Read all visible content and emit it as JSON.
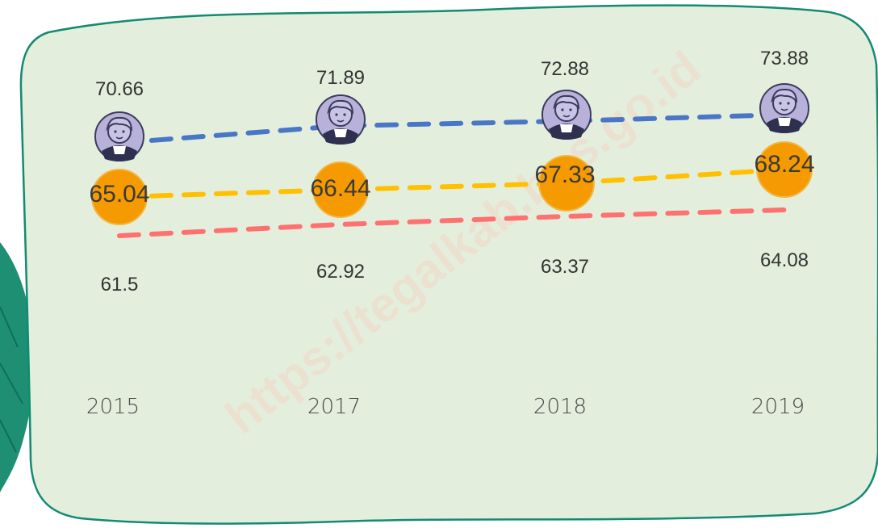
{
  "colors": {
    "panel_fill": "#e3efdc",
    "panel_border": "#138a72",
    "leaf": "#1f8f73",
    "series_top": "#4a76c6",
    "series_mid": "#ffc000",
    "series_bottom": "#ff7070",
    "marker_mid": "#f59a00",
    "avatar_bg": "#b8b2db"
  },
  "watermark": "https://tegalkab.bps.go.id",
  "chart_data": {
    "type": "line",
    "x": [
      "2015",
      "2017",
      "2018",
      "2019"
    ],
    "series": [
      {
        "values": [
          70.66,
          71.89,
          72.88,
          73.88
        ],
        "color": "#4a76c6",
        "marker": "avatar-icon"
      },
      {
        "values": [
          65.04,
          66.44,
          67.33,
          68.24
        ],
        "color": "#ffc000",
        "marker": "orange-circle"
      },
      {
        "values": [
          61.5,
          62.92,
          63.37,
          64.08
        ],
        "color": "#ff7070",
        "marker": "none"
      }
    ],
    "line_style": "dashed",
    "grid": false,
    "legend": "none"
  }
}
